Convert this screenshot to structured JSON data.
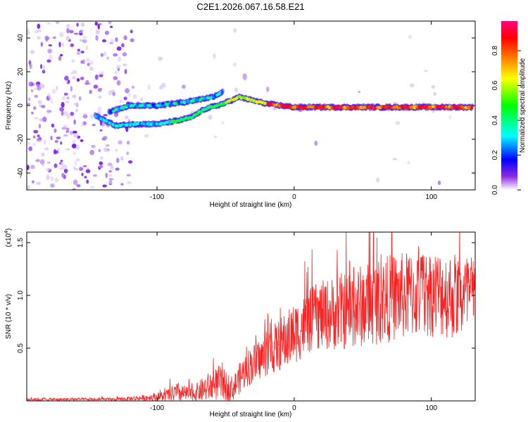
{
  "chart_data": [
    {
      "type": "spectrogram",
      "title": "C2E1.2026.067.16.58.E21",
      "xlabel": "Height of straight line (km)",
      "ylabel": "Frequency (Hz)",
      "xlim": [
        -195,
        132
      ],
      "ylim": [
        -50,
        50
      ],
      "xticks": [
        -100,
        0,
        100
      ],
      "yticks": [
        -40,
        -20,
        0,
        20,
        40
      ],
      "xtick_labels": [
        "-100",
        "0",
        "100"
      ],
      "ytick_labels": [
        "-40",
        "-20",
        "0",
        "20",
        "40"
      ],
      "colorbar": {
        "label": "Normalized spectral amplitude",
        "range": [
          0,
          0.97
        ],
        "ticks": [
          0.0,
          0.2,
          0.4,
          0.6,
          0.8
        ],
        "tick_labels": [
          "0.0",
          "0.2",
          "0.4",
          "0.6",
          "0.8"
        ],
        "colormap": [
          "#ffffff",
          "#8a2be2",
          "#0000ff",
          "#00ffff",
          "#00ff00",
          "#ffff00",
          "#ff7f00",
          "#ff0000",
          "#ff0080"
        ]
      },
      "signal_track": [
        {
          "x": -145,
          "y": -6
        },
        {
          "x": -130,
          "y": -12
        },
        {
          "x": -115,
          "y": -11
        },
        {
          "x": -100,
          "y": -11
        },
        {
          "x": -85,
          "y": -9
        },
        {
          "x": -75,
          "y": -7
        },
        {
          "x": -65,
          "y": -2
        },
        {
          "x": -52,
          "y": 1
        },
        {
          "x": -40,
          "y": 5
        },
        {
          "x": -30,
          "y": 3
        },
        {
          "x": -20,
          "y": 1
        },
        {
          "x": -10,
          "y": 0
        },
        {
          "x": 0,
          "y": -1
        },
        {
          "x": 20,
          "y": -1
        },
        {
          "x": 40,
          "y": -1
        },
        {
          "x": 60,
          "y": -1
        },
        {
          "x": 80,
          "y": -1
        },
        {
          "x": 100,
          "y": -1
        },
        {
          "x": 130,
          "y": -1
        }
      ],
      "signal_track_upper": [
        {
          "x": -135,
          "y": -4
        },
        {
          "x": -120,
          "y": 0
        },
        {
          "x": -100,
          "y": 0
        },
        {
          "x": -80,
          "y": 2
        },
        {
          "x": -60,
          "y": 5
        },
        {
          "x": -52,
          "y": 8
        }
      ],
      "spike": {
        "x": -36,
        "y": 17
      }
    },
    {
      "type": "line",
      "xlabel": "Height of straight line (km)",
      "ylabel": "SNR (10 * v/v)",
      "multiplier_label": "(x10",
      "multiplier_exp": "4",
      "xlim": [
        -195,
        132
      ],
      "ylim": [
        0,
        1.6
      ],
      "xticks": [
        -100,
        0,
        100
      ],
      "yticks": [
        0.5,
        1.0,
        1.5
      ],
      "xtick_labels": [
        "-100",
        "0",
        "100"
      ],
      "ytick_labels": [
        "0.5",
        "1.0",
        "1.5"
      ],
      "color": "#ff2020",
      "series": [
        {
          "name": "SNR",
          "envelope": [
            {
              "x": -195,
              "base": 0.01,
              "amp": 0.02
            },
            {
              "x": -130,
              "base": 0.01,
              "amp": 0.02
            },
            {
              "x": -110,
              "base": 0.02,
              "amp": 0.04
            },
            {
              "x": -95,
              "base": 0.03,
              "amp": 0.07
            },
            {
              "x": -85,
              "base": 0.05,
              "amp": 0.14
            },
            {
              "x": -75,
              "base": 0.04,
              "amp": 0.09
            },
            {
              "x": -65,
              "base": 0.08,
              "amp": 0.18
            },
            {
              "x": -55,
              "base": 0.12,
              "amp": 0.24
            },
            {
              "x": -45,
              "base": 0.08,
              "amp": 0.17
            },
            {
              "x": -35,
              "base": 0.25,
              "amp": 0.25
            },
            {
              "x": -20,
              "base": 0.38,
              "amp": 0.3
            },
            {
              "x": -5,
              "base": 0.5,
              "amp": 0.4
            },
            {
              "x": 15,
              "base": 0.7,
              "amp": 0.45
            },
            {
              "x": 40,
              "base": 0.75,
              "amp": 0.55
            },
            {
              "x": 70,
              "base": 0.85,
              "amp": 0.6
            },
            {
              "x": 100,
              "base": 0.9,
              "amp": 0.6
            },
            {
              "x": 132,
              "base": 0.85,
              "amp": 0.6
            }
          ]
        }
      ]
    }
  ]
}
